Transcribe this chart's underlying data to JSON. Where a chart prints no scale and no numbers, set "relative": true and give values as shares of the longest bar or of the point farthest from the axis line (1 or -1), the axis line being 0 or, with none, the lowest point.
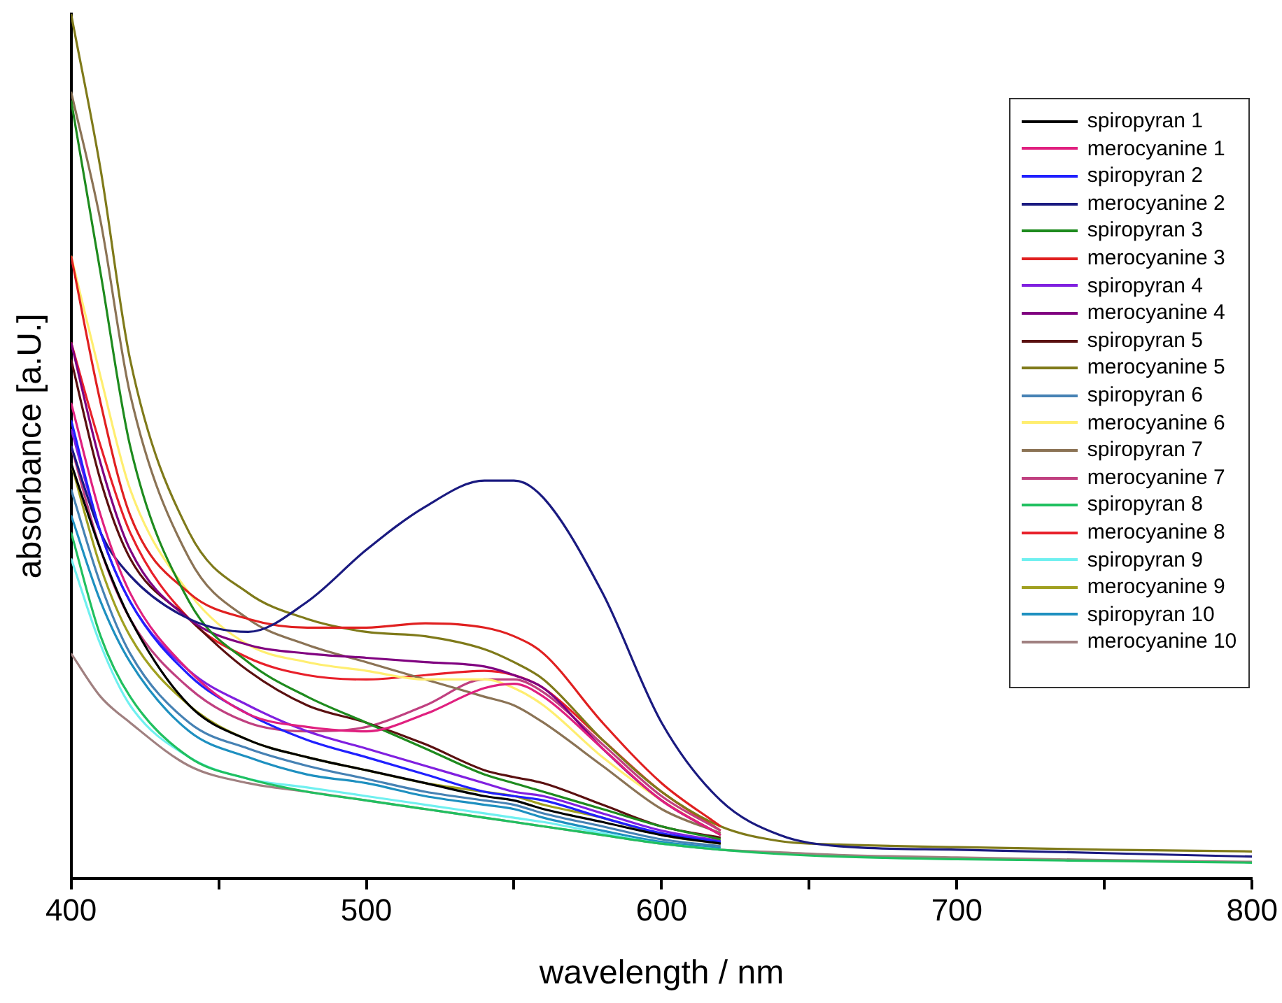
{
  "chart_data": {
    "type": "line",
    "xlabel": "wavelength / nm",
    "ylabel": "absorbance [a.U.]",
    "relative": true,
    "legend": "top right",
    "grid": false,
    "marker": "none",
    "line_style": "solid",
    "x": [
      400,
      410,
      420,
      440,
      460,
      480,
      500,
      520,
      540,
      550,
      560,
      580,
      600,
      620,
      640,
      660,
      700,
      750,
      800
    ],
    "xlim": [
      400,
      800
    ],
    "xticks": [
      400,
      {
        "value": 450,
        "label": null
      },
      500,
      {
        "value": 550,
        "label": null
      },
      600,
      {
        "value": 650,
        "label": null
      },
      700,
      {
        "value": 750,
        "label": null
      },
      800
    ],
    "series": [
      {
        "name": "spiropyran 1",
        "color": "#000000",
        "values": [
          0.48,
          0.38,
          0.3,
          0.2,
          0.16,
          0.14,
          0.125,
          0.11,
          0.095,
          0.09,
          0.08,
          0.065,
          0.05,
          0.04,
          null,
          null,
          null,
          null,
          null
        ]
      },
      {
        "name": "merocyanine 1",
        "color": "#e0207f",
        "values": [
          0.55,
          0.42,
          0.33,
          0.24,
          0.19,
          0.175,
          0.17,
          0.19,
          0.22,
          0.225,
          0.21,
          0.15,
          0.09,
          0.05,
          null,
          null,
          null,
          null,
          null
        ]
      },
      {
        "name": "spiropyran 2",
        "color": "#2020ff",
        "values": [
          0.53,
          0.4,
          0.32,
          0.235,
          0.19,
          0.16,
          0.14,
          0.12,
          0.1,
          0.095,
          0.09,
          0.07,
          0.052,
          0.042,
          null,
          null,
          null,
          null,
          null
        ]
      },
      {
        "name": "merocyanine 2",
        "color": "#1a1a80",
        "values": [
          0.5,
          0.4,
          0.35,
          0.3,
          0.285,
          0.32,
          0.38,
          0.43,
          0.46,
          0.46,
          0.44,
          0.33,
          0.18,
          0.09,
          0.05,
          0.037,
          0.033,
          0.029,
          0.025
        ]
      },
      {
        "name": "spiropyran 3",
        "color": "#1e8b1e",
        "values": [
          0.9,
          0.7,
          0.5,
          0.32,
          0.25,
          0.21,
          0.18,
          0.15,
          0.12,
          0.11,
          0.1,
          0.08,
          0.06,
          0.045,
          null,
          null,
          null,
          null,
          null
        ]
      },
      {
        "name": "merocyanine 3",
        "color": "#e02020",
        "values": [
          0.72,
          0.55,
          0.42,
          0.33,
          0.3,
          0.29,
          0.29,
          0.295,
          0.29,
          0.28,
          0.26,
          0.18,
          0.11,
          0.06,
          null,
          null,
          null,
          null,
          null
        ]
      },
      {
        "name": "spiropyran 4",
        "color": "#8020e0",
        "values": [
          0.52,
          0.4,
          0.32,
          0.24,
          0.2,
          0.17,
          0.15,
          0.13,
          0.11,
          0.1,
          0.095,
          0.075,
          0.055,
          0.043,
          null,
          null,
          null,
          null,
          null
        ]
      },
      {
        "name": "merocyanine 4",
        "color": "#800080",
        "values": [
          0.62,
          0.48,
          0.38,
          0.3,
          0.27,
          0.26,
          0.255,
          0.25,
          0.245,
          0.235,
          0.22,
          0.15,
          0.09,
          0.05,
          null,
          null,
          null,
          null,
          null
        ]
      },
      {
        "name": "spiropyran 5",
        "color": "#5a1010",
        "values": [
          0.6,
          0.46,
          0.37,
          0.3,
          0.24,
          0.2,
          0.18,
          0.155,
          0.125,
          0.117,
          0.11,
          0.085,
          0.06,
          0.047,
          null,
          null,
          null,
          null,
          null
        ]
      },
      {
        "name": "merocyanine 5",
        "color": "#7f7a1a",
        "values": [
          1,
          0.82,
          0.6,
          0.4,
          0.33,
          0.3,
          0.285,
          0.28,
          0.265,
          0.25,
          0.23,
          0.16,
          0.1,
          0.06,
          0.043,
          0.039,
          0.036,
          0.033,
          0.031
        ]
      },
      {
        "name": "spiropyran 6",
        "color": "#4682b4",
        "values": [
          0.45,
          0.34,
          0.26,
          0.18,
          0.15,
          0.13,
          0.115,
          0.1,
          0.09,
          0.085,
          0.075,
          0.06,
          0.045,
          0.037,
          null,
          null,
          null,
          null,
          null
        ]
      },
      {
        "name": "merocyanine 6",
        "color": "#ffee70",
        "values": [
          0.72,
          0.58,
          0.45,
          0.33,
          0.27,
          0.25,
          0.24,
          0.23,
          0.23,
          0.22,
          0.2,
          0.14,
          0.09,
          0.05,
          null,
          null,
          null,
          null,
          null
        ]
      },
      {
        "name": "spiropyran 7",
        "color": "#8b7355",
        "values": [
          0.91,
          0.76,
          0.56,
          0.37,
          0.3,
          0.27,
          0.25,
          0.23,
          0.21,
          0.2,
          0.18,
          0.13,
          0.08,
          0.052,
          null,
          null,
          null,
          null,
          null
        ]
      },
      {
        "name": "merocyanine 7",
        "color": "#c04080",
        "values": [
          0.5,
          0.38,
          0.3,
          0.22,
          0.18,
          0.17,
          0.175,
          0.2,
          0.23,
          0.23,
          0.215,
          0.155,
          0.095,
          0.055,
          null,
          null,
          null,
          null,
          null
        ]
      },
      {
        "name": "spiropyran 8",
        "color": "#20c060",
        "values": [
          0.4,
          0.28,
          0.21,
          0.14,
          0.115,
          0.1,
          0.09,
          0.08,
          0.07,
          0.065,
          0.06,
          0.05,
          0.04,
          0.033,
          0.028,
          0.025,
          0.022,
          0.02,
          0.018
        ]
      },
      {
        "name": "merocyanine 8",
        "color": "#e8202a",
        "values": [
          0.62,
          0.5,
          0.4,
          0.3,
          0.255,
          0.235,
          0.23,
          0.235,
          0.24,
          0.235,
          0.22,
          0.16,
          0.1,
          0.055,
          null,
          null,
          null,
          null,
          null
        ]
      },
      {
        "name": "spiropyran 9",
        "color": "#70f0f0",
        "values": [
          0.37,
          0.27,
          0.2,
          0.14,
          0.115,
          0.105,
          0.095,
          0.085,
          0.075,
          0.07,
          0.065,
          0.052,
          0.04,
          0.033,
          null,
          null,
          null,
          null,
          null
        ]
      },
      {
        "name": "merocyanine 9",
        "color": "#a0a020",
        "values": [
          0.48,
          0.36,
          0.28,
          0.2,
          0.16,
          0.14,
          0.125,
          0.11,
          0.1,
          0.095,
          0.085,
          0.07,
          0.05,
          0.04,
          null,
          null,
          null,
          null,
          null
        ]
      },
      {
        "name": "spiropyran 10",
        "color": "#1e90c0",
        "values": [
          0.42,
          0.32,
          0.25,
          0.17,
          0.14,
          0.12,
          0.11,
          0.095,
          0.085,
          0.08,
          0.07,
          0.055,
          0.042,
          0.035,
          null,
          null,
          null,
          null,
          null
        ]
      },
      {
        "name": "merocyanine 10",
        "color": "#a08080",
        "values": [
          0.26,
          0.21,
          0.18,
          0.13,
          0.11,
          0.1,
          0.09,
          0.08,
          0.07,
          0.065,
          0.06,
          0.05,
          0.04,
          0.033,
          0.03,
          0.027,
          0.024,
          0.021,
          0.019
        ]
      }
    ]
  }
}
